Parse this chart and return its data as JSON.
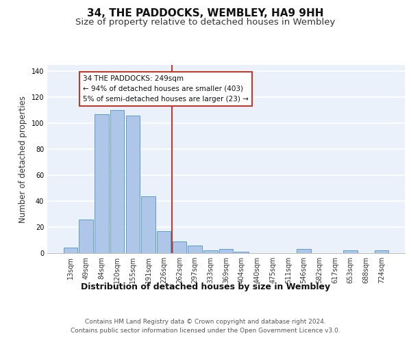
{
  "title": "34, THE PADDOCKS, WEMBLEY, HA9 9HH",
  "subtitle": "Size of property relative to detached houses in Wembley",
  "xlabel": "Distribution of detached houses by size in Wembley",
  "ylabel": "Number of detached properties",
  "categories": [
    "13sqm",
    "49sqm",
    "84sqm",
    "120sqm",
    "155sqm",
    "191sqm",
    "226sqm",
    "262sqm",
    "297sqm",
    "333sqm",
    "369sqm",
    "404sqm",
    "440sqm",
    "475sqm",
    "511sqm",
    "546sqm",
    "582sqm",
    "617sqm",
    "653sqm",
    "688sqm",
    "724sqm"
  ],
  "values": [
    4,
    26,
    107,
    110,
    106,
    44,
    17,
    9,
    6,
    2,
    3,
    1,
    0,
    0,
    0,
    3,
    0,
    0,
    2,
    0,
    2
  ],
  "bar_color": "#aec6e8",
  "bar_edge_color": "#5b9bd5",
  "background_color": "#eaf1fb",
  "grid_color": "#ffffff",
  "vline_x": 6.5,
  "vline_color": "#c0392b",
  "annotation_text": "34 THE PADDOCKS: 249sqm\n← 94% of detached houses are smaller (403)\n5% of semi-detached houses are larger (23) →",
  "annotation_box_color": "#c0392b",
  "ylim": [
    0,
    145
  ],
  "footer_text": "Contains HM Land Registry data © Crown copyright and database right 2024.\nContains public sector information licensed under the Open Government Licence v3.0.",
  "title_fontsize": 11,
  "subtitle_fontsize": 9.5,
  "xlabel_fontsize": 9,
  "ylabel_fontsize": 8.5,
  "footer_fontsize": 6.5,
  "tick_fontsize": 7,
  "annot_fontsize": 7.5
}
